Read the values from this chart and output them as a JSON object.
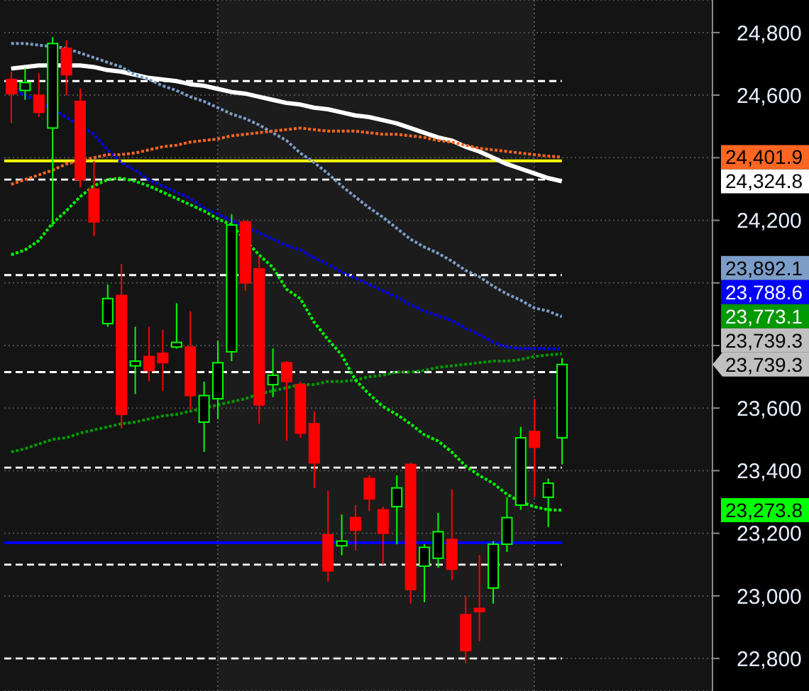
{
  "chart_data": {
    "type": "candlestick",
    "categories": [
      null,
      null,
      null,
      null,
      null,
      null,
      null,
      null,
      null,
      null,
      null,
      null,
      null,
      null,
      null,
      null,
      null,
      null,
      null,
      null,
      null,
      null,
      null,
      null,
      null,
      null,
      null,
      null,
      null,
      null,
      null,
      null,
      null,
      null,
      null,
      null,
      null,
      null,
      null,
      null,
      null
    ],
    "ohlc": [
      [
        24650,
        24675,
        24510,
        24605
      ],
      [
        24615,
        24685,
        24585,
        24640
      ],
      [
        24600,
        24670,
        24530,
        24545
      ],
      [
        24495,
        24785,
        24180,
        24765
      ],
      [
        24750,
        24775,
        24600,
        24665
      ],
      [
        24580,
        24620,
        24305,
        24330
      ],
      [
        24300,
        24390,
        24150,
        24195
      ],
      [
        23870,
        23995,
        23860,
        23950
      ],
      [
        23960,
        24060,
        23535,
        23580
      ],
      [
        23735,
        23860,
        23645,
        23750
      ],
      [
        23765,
        23860,
        23685,
        23720
      ],
      [
        23775,
        23850,
        23655,
        23745
      ],
      [
        23795,
        23935,
        23790,
        23810
      ],
      [
        23795,
        23910,
        23595,
        23640
      ],
      [
        23555,
        23685,
        23460,
        23640
      ],
      [
        23630,
        23815,
        23565,
        23745
      ],
      [
        23780,
        24220,
        23750,
        24185
      ],
      [
        24195,
        24200,
        23975,
        24000
      ],
      [
        24045,
        24085,
        23550,
        23610
      ],
      [
        23675,
        23790,
        23635,
        23705
      ],
      [
        23745,
        23750,
        23495,
        23685
      ],
      [
        23675,
        23685,
        23505,
        23520
      ],
      [
        23550,
        23590,
        23345,
        23425
      ],
      [
        23195,
        23335,
        23045,
        23080
      ],
      [
        23160,
        23260,
        23130,
        23175
      ],
      [
        23250,
        23290,
        23145,
        23210
      ],
      [
        23375,
        23385,
        23270,
        23310
      ],
      [
        23275,
        23285,
        23100,
        23200
      ],
      [
        23285,
        23385,
        23165,
        23345
      ],
      [
        23420,
        23425,
        22975,
        23020
      ],
      [
        23095,
        23165,
        22980,
        23155
      ],
      [
        23120,
        23265,
        23090,
        23205
      ],
      [
        23180,
        23340,
        23050,
        23085
      ],
      [
        22940,
        23000,
        22785,
        22825
      ],
      [
        22960,
        23130,
        22855,
        22950
      ],
      [
        23025,
        23175,
        22975,
        23165
      ],
      [
        23165,
        23315,
        23140,
        23250
      ],
      [
        23290,
        23540,
        23275,
        23505
      ],
      [
        23525,
        23630,
        23315,
        23475
      ],
      [
        23315,
        23375,
        23220,
        23360
      ],
      [
        23505,
        23760,
        23420,
        23739.3
      ]
    ],
    "colors": [
      "#ff0000",
      "#00ff00",
      "#ff0000",
      "#00ff00",
      "#ff0000",
      "#ff0000",
      "#ff0000",
      "#00ff00",
      "#ff0000",
      "#00ff00",
      "#ff0000",
      "#ff0000",
      "#00ff00",
      "#ff0000",
      "#00ff00",
      "#00ff00",
      "#00ff00",
      "#ff0000",
      "#ff0000",
      "#00ff00",
      "#ff0000",
      "#ff0000",
      "#ff0000",
      "#ff0000",
      "#00ff00",
      "#ff0000",
      "#ff0000",
      "#ff0000",
      "#00ff00",
      "#ff0000",
      "#00ff00",
      "#00ff00",
      "#ff0000",
      "#ff0000",
      "#ff0000",
      "#00ff00",
      "#00ff00",
      "#00ff00",
      "#ff0000",
      "#00ff00",
      "#00ff00"
    ],
    "value_labels": [
      null,
      null,
      null,
      null,
      null,
      null,
      null,
      null,
      null,
      null,
      null,
      null,
      null,
      null,
      null,
      null,
      null,
      null,
      null,
      null,
      null,
      null,
      null,
      null,
      null,
      null,
      null,
      null,
      null,
      null,
      null,
      null,
      null,
      null,
      null,
      null,
      null,
      null,
      null,
      null,
      "23,739.3"
    ],
    "series": [
      {
        "type": "line",
        "color": "#ffffff",
        "line_style": "solid",
        "values": [
          24685,
          24690,
          24695,
          24695,
          24695,
          24695,
          24690,
          24680,
          24675,
          24665,
          24655,
          24650,
          24645,
          24635,
          24630,
          24620,
          24610,
          24605,
          24595,
          24585,
          24575,
          24570,
          24560,
          24555,
          24545,
          24535,
          24530,
          24520,
          24510,
          24495,
          24480,
          24465,
          24455,
          24435,
          24420,
          24400,
          24380,
          24365,
          24350,
          24335,
          24324.8
        ]
      },
      {
        "type": "line",
        "color": "#7b9dc8",
        "line_style": "dotted",
        "values": [
          24765,
          24765,
          24760,
          24755,
          24750,
          24735,
          24720,
          24705,
          24690,
          24665,
          24650,
          24630,
          24615,
          24595,
          24580,
          24560,
          24540,
          24525,
          24505,
          24480,
          24455,
          24415,
          24385,
          24350,
          24310,
          24275,
          24240,
          24210,
          24175,
          24140,
          24115,
          24095,
          24070,
          24040,
          24020,
          23990,
          23965,
          23945,
          23920,
          23910,
          23892.1
        ]
      },
      {
        "type": "line",
        "color": "#ff6622",
        "line_style": "dotted",
        "values": [
          24315,
          24330,
          24345,
          24360,
          24380,
          null,
          24400,
          24410,
          24410,
          24415,
          24425,
          24435,
          24440,
          24450,
          24455,
          24460,
          24470,
          24475,
          24480,
          24485,
          24490,
          24495,
          24490,
          24485,
          24485,
          24485,
          24480,
          24475,
          24475,
          24470,
          24465,
          24455,
          24450,
          24440,
          24430,
          24425,
          24420,
          24415,
          24410,
          24405,
          24401.9
        ]
      },
      {
        "type": "line",
        "color": "#0000ff",
        "line_style": "dotted",
        "values": [
          24620,
          24600,
          24580,
          24555,
          24530,
          null,
          24475,
          24425,
          24385,
          24360,
          24330,
          24310,
          24290,
          24270,
          24240,
          24220,
          24200,
          null,
          24160,
          24140,
          24120,
          24105,
          24080,
          24060,
          24035,
          24015,
          23995,
          23975,
          23955,
          23930,
          23910,
          23895,
          23880,
          23855,
          23835,
          23810,
          23795,
          23790,
          23790,
          23790,
          23788.6
        ]
      },
      {
        "type": "line",
        "color": "#009900",
        "line_style": "dotted",
        "values": [
          23460,
          23470,
          23485,
          23500,
          23505,
          23520,
          23530,
          23540,
          23550,
          23555,
          23565,
          23575,
          23580,
          23590,
          23600,
          23610,
          23620,
          23630,
          23645,
          23655,
          23665,
          23675,
          23675,
          23685,
          23685,
          23690,
          23700,
          23705,
          23715,
          23715,
          23720,
          23730,
          23735,
          23740,
          23745,
          23750,
          23750,
          23755,
          23765,
          23770,
          23773.1
        ]
      },
      {
        "type": "line",
        "color": "#00ff00",
        "line_style": "dotted",
        "values": [
          24090,
          24105,
          24135,
          24190,
          24230,
          24275,
          24310,
          24330,
          24335,
          24325,
          24310,
          24290,
          24270,
          24250,
          24230,
          24205,
          24185,
          null,
          24090,
          24050,
          23980,
          23950,
          23875,
          23820,
          23770,
          23690,
          23645,
          23605,
          23580,
          23550,
          23515,
          23495,
          23460,
          23415,
          23385,
          23360,
          23325,
          23300,
          23285,
          23275,
          23273.8
        ]
      }
    ],
    "annotations": [
      "24,324.8",
      "23,892.1",
      "24,401.9",
      "23,788.6",
      "23,773.1",
      "23,273.8",
      "23,739.3"
    ],
    "ref_lines": [
      {
        "axis": "y",
        "value": 24390,
        "color": "#ffff00",
        "line_style": "solid"
      },
      {
        "axis": "y",
        "value": 23170,
        "color": "#0000ff",
        "line_style": "solid"
      },
      {
        "axis": "y",
        "value": 24645,
        "color": "#ffffff",
        "line_style": "dashed"
      },
      {
        "axis": "y",
        "value": 24330,
        "color": "#ffffff",
        "line_style": "dashed"
      },
      {
        "axis": "y",
        "value": 24025,
        "color": "#ffffff",
        "line_style": "dashed"
      },
      {
        "axis": "y",
        "value": 23715,
        "color": "#ffffff",
        "line_style": "dashed"
      },
      {
        "axis": "y",
        "value": 23410,
        "color": "#ffffff",
        "line_style": "dashed"
      },
      {
        "axis": "y",
        "value": 23100,
        "color": "#ffffff",
        "line_style": "dashed"
      },
      {
        "axis": "y",
        "value": 22800,
        "color": "#ffffff",
        "line_style": "dashed"
      }
    ],
    "ylim": [
      22696,
      24904
    ],
    "yticks": [
      {
        "value": 22800,
        "label": "22,800"
      },
      {
        "value": 23000,
        "label": "23,000"
      },
      {
        "value": 23200,
        "label": "23,200"
      },
      {
        "value": 23400,
        "label": "23,400"
      },
      {
        "value": 23600,
        "label": "23,600"
      },
      {
        "value": 23800,
        "label": null
      },
      {
        "value": 24000,
        "label": null
      },
      {
        "value": 24200,
        "label": "24,200"
      },
      {
        "value": 24400,
        "label": null
      },
      {
        "value": 24600,
        "label": "24,600"
      },
      {
        "value": 24800,
        "label": "24,800"
      }
    ],
    "grid": "y"
  }
}
